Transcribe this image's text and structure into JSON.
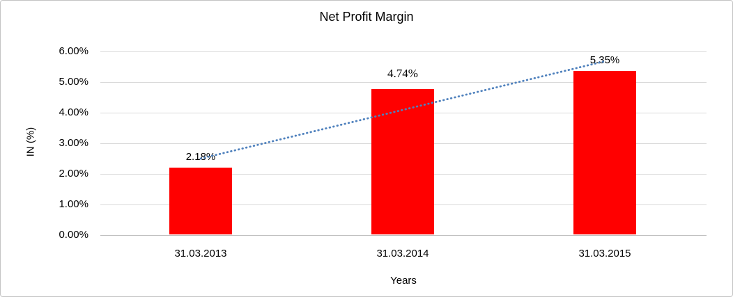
{
  "window": {
    "background": "#FFFFFF",
    "border_color": "#C3C3C3"
  },
  "chart_data": {
    "type": "bar",
    "title": "Net Profit Margin",
    "categories": [
      "31.03.2013",
      "31.03.2014",
      "31.03.2015"
    ],
    "values": [
      2.18,
      4.74,
      5.35
    ],
    "data_labels": [
      "2.18%",
      "4.74%",
      "5.35%"
    ],
    "data_label_fonts": [
      "sans",
      "serif",
      "sans"
    ],
    "xlabel": "Years",
    "ylabel": "IN (%)",
    "ylim": [
      0,
      6
    ],
    "yticks": [
      0,
      1,
      2,
      3,
      4,
      5,
      6
    ],
    "ytick_labels": [
      "0.00%",
      "1.00%",
      "2.00%",
      "3.00%",
      "4.00%",
      "5.00%",
      "6.00%"
    ],
    "grid": true,
    "legend": "none",
    "bar_color": "#FF0000",
    "gridline_color": "#D9D9D9",
    "axis_line_color": "#C0C0C0",
    "text_color": "#000000",
    "trendline": {
      "type": "linear",
      "style": "dotted",
      "color": "#4F81BD",
      "endpoint_values": [
        2.5,
        5.68
      ]
    }
  }
}
